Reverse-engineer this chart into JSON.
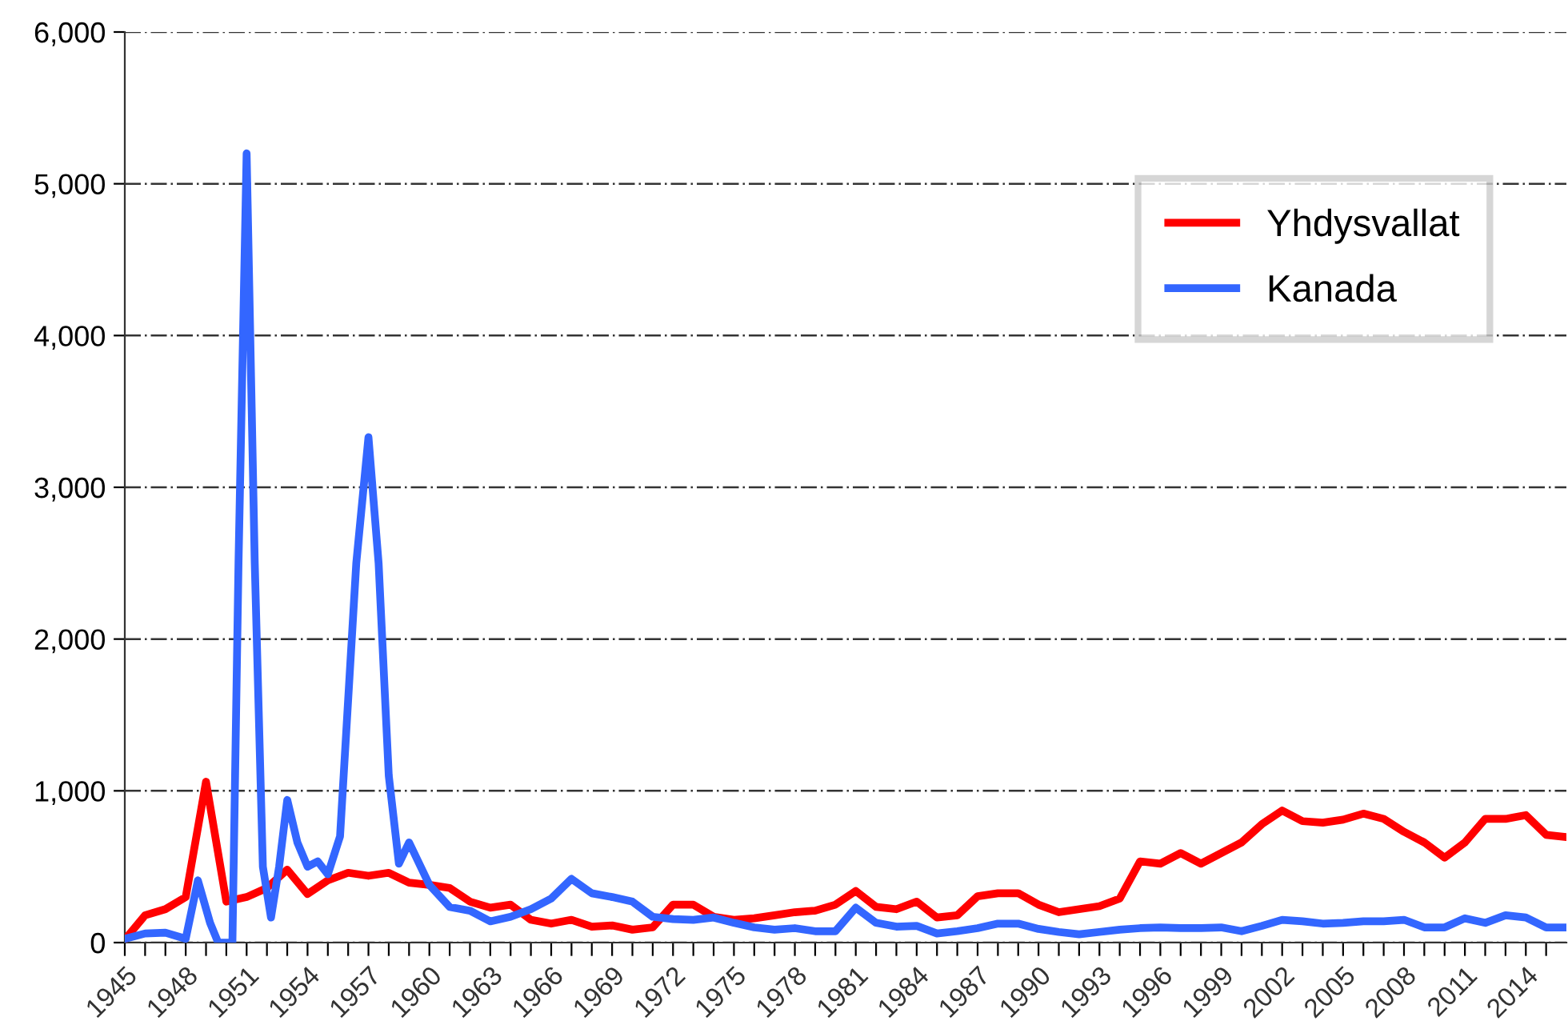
{
  "chart_data": {
    "type": "line",
    "xlim": [
      1945,
      2016
    ],
    "ylim": [
      0,
      6000
    ],
    "yticks": [
      {
        "value": 0,
        "label": "0"
      },
      {
        "value": 1000,
        "label": "1,000"
      },
      {
        "value": 2000,
        "label": "2,000"
      },
      {
        "value": 3000,
        "label": "3,000"
      },
      {
        "value": 4000,
        "label": "4,000"
      },
      {
        "value": 5000,
        "label": "5,000"
      },
      {
        "value": 6000,
        "label": "6,000"
      }
    ],
    "xticks": [
      1945,
      {
        "value": 1946,
        "label": null
      },
      {
        "value": 1947,
        "label": null
      },
      1948,
      {
        "value": 1949,
        "label": null
      },
      {
        "value": 1950,
        "label": null
      },
      1951,
      {
        "value": 1952,
        "label": null
      },
      {
        "value": 1953,
        "label": null
      },
      1954,
      {
        "value": 1955,
        "label": null
      },
      {
        "value": 1956,
        "label": null
      },
      1957,
      {
        "value": 1958,
        "label": null
      },
      {
        "value": 1959,
        "label": null
      },
      1960,
      {
        "value": 1961,
        "label": null
      },
      {
        "value": 1962,
        "label": null
      },
      1963,
      {
        "value": 1964,
        "label": null
      },
      {
        "value": 1965,
        "label": null
      },
      1966,
      {
        "value": 1967,
        "label": null
      },
      {
        "value": 1968,
        "label": null
      },
      1969,
      {
        "value": 1970,
        "label": null
      },
      {
        "value": 1971,
        "label": null
      },
      1972,
      {
        "value": 1973,
        "label": null
      },
      {
        "value": 1974,
        "label": null
      },
      1975,
      {
        "value": 1976,
        "label": null
      },
      {
        "value": 1977,
        "label": null
      },
      1978,
      {
        "value": 1979,
        "label": null
      },
      {
        "value": 1980,
        "label": null
      },
      1981,
      {
        "value": 1982,
        "label": null
      },
      {
        "value": 1983,
        "label": null
      },
      1984,
      {
        "value": 1985,
        "label": null
      },
      {
        "value": 1986,
        "label": null
      },
      1987,
      {
        "value": 1988,
        "label": null
      },
      {
        "value": 1989,
        "label": null
      },
      1990,
      {
        "value": 1991,
        "label": null
      },
      {
        "value": 1992,
        "label": null
      },
      1993,
      {
        "value": 1994,
        "label": null
      },
      {
        "value": 1995,
        "label": null
      },
      1996,
      {
        "value": 1997,
        "label": null
      },
      {
        "value": 1998,
        "label": null
      },
      1999,
      {
        "value": 2000,
        "label": null
      },
      {
        "value": 2001,
        "label": null
      },
      2002,
      {
        "value": 2003,
        "label": null
      },
      {
        "value": 2004,
        "label": null
      },
      2005,
      {
        "value": 2006,
        "label": null
      },
      {
        "value": 2007,
        "label": null
      },
      2008,
      {
        "value": 2009,
        "label": null
      },
      {
        "value": 2010,
        "label": null
      },
      2011,
      {
        "value": 2012,
        "label": null
      },
      {
        "value": 2013,
        "label": null
      },
      2014,
      {
        "value": 2015,
        "label": null
      }
    ],
    "grid": "y",
    "legend": "top right",
    "marker": "none",
    "line_style": "solid",
    "series": [
      {
        "name": "Yhdysvallat",
        "color": "#ff0000",
        "x": [
          1945,
          1946,
          1947,
          1948,
          1949,
          1950,
          1951,
          1952,
          1953,
          1954,
          1955,
          1956,
          1957,
          1958,
          1959,
          1960,
          1961,
          1962,
          1963,
          1964,
          1965,
          1966,
          1967,
          1968,
          1969,
          1970,
          1971,
          1972,
          1973,
          1974,
          1975,
          1976,
          1977,
          1978,
          1979,
          1980,
          1981,
          1982,
          1983,
          1984,
          1985,
          1986,
          1987,
          1988,
          1989,
          1990,
          1991,
          1992,
          1993,
          1994,
          1995,
          1996,
          1997,
          1998,
          1999,
          2000,
          2001,
          2002,
          2003,
          2004,
          2005,
          2006,
          2007,
          2008,
          2009,
          2010,
          2011,
          2012,
          2013,
          2014,
          2015,
          2016
        ],
        "values": [
          20,
          180,
          220,
          300,
          1060,
          270,
          300,
          360,
          480,
          320,
          410,
          460,
          440,
          460,
          395,
          380,
          360,
          270,
          230,
          250,
          150,
          125,
          150,
          105,
          113,
          85,
          100,
          250,
          250,
          170,
          150,
          160,
          180,
          200,
          210,
          250,
          340,
          235,
          220,
          270,
          165,
          180,
          305,
          325,
          325,
          250,
          200,
          220,
          240,
          290,
          535,
          520,
          590,
          520,
          590,
          660,
          780,
          870,
          800,
          790,
          810,
          850,
          815,
          730,
          660,
          560,
          660,
          815,
          815,
          840,
          710,
          695
        ]
      },
      {
        "name": "Kanada",
        "color": "#3366ff",
        "x": [
          1945,
          1946,
          1947,
          1948,
          1948.6,
          1949.2,
          1949.6,
          1950.3,
          1950.6,
          1951,
          1951.4,
          1951.8,
          1952.2,
          1952.6,
          1953,
          1953.5,
          1954,
          1954.5,
          1955,
          1955.6,
          1956.4,
          1957,
          1957.5,
          1958,
          1958.5,
          1959,
          1960,
          1961,
          1962,
          1963,
          1964,
          1965,
          1966,
          1967,
          1968,
          1969,
          1970,
          1971,
          1972,
          1973,
          1974,
          1975,
          1976,
          1977,
          1978,
          1979,
          1980,
          1981,
          1982,
          1983,
          1984,
          1985,
          1986,
          1987,
          1988,
          1989,
          1990,
          1991,
          1992,
          1993,
          1994,
          1995,
          1996,
          1997,
          1998,
          1999,
          2000,
          2001,
          2002,
          2003,
          2004,
          2005,
          2006,
          2007,
          2008,
          2009,
          2010,
          2011,
          2012,
          2013,
          2014,
          2015,
          2016
        ],
        "values": [
          25,
          60,
          65,
          25,
          410,
          130,
          0,
          0,
          2500,
          5200,
          2500,
          500,
          165,
          500,
          940,
          660,
          500,
          535,
          450,
          700,
          2500,
          3330,
          2500,
          1100,
          520,
          660,
          380,
          235,
          210,
          140,
          170,
          220,
          290,
          420,
          325,
          300,
          270,
          170,
          155,
          150,
          165,
          130,
          100,
          85,
          95,
          75,
          75,
          230,
          130,
          105,
          110,
          60,
          75,
          95,
          125,
          125,
          90,
          70,
          55,
          70,
          85,
          95,
          100,
          95,
          95,
          100,
          75,
          110,
          150,
          140,
          125,
          130,
          140,
          140,
          150,
          100,
          100,
          160,
          130,
          180,
          165,
          100,
          100
        ]
      }
    ]
  }
}
